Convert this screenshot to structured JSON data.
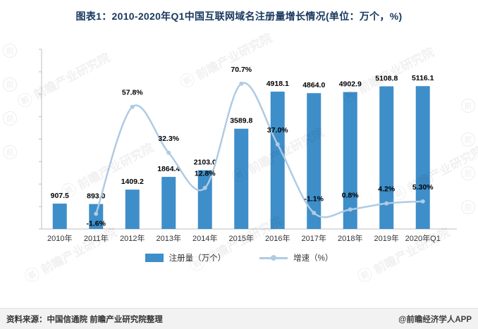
{
  "title": "图表1：2010-2020年Q1中国互联网域名注册量增长情况(单位：万个，%)",
  "chart_data": {
    "type": "bar",
    "subtype": "bar+line-combo",
    "title": "图表1：2010-2020年Q1中国互联网域名注册量增长情况(单位：万个，%)",
    "categories": [
      "2010年",
      "2011年",
      "2012年",
      "2013年",
      "2014年",
      "2015年",
      "2016年",
      "2017年",
      "2018年",
      "2019年",
      "2020年Q1"
    ],
    "series": [
      {
        "name": "注册量（万个）",
        "type": "bar",
        "values": [
          907.5,
          893.0,
          1409.2,
          1864.4,
          2103.0,
          3589.8,
          4918.1,
          4864.0,
          4902.9,
          5108.8,
          5116.1
        ],
        "labels": [
          "907.5",
          "893.0",
          "1409.2",
          "1864.4",
          "2103.0",
          "3589.8",
          "4918.1",
          "4864.0",
          "4902.9",
          "5108.8",
          "5116.1"
        ]
      },
      {
        "name": "增速（%）",
        "type": "line",
        "values": [
          null,
          -1.6,
          57.8,
          32.3,
          12.8,
          70.7,
          37.0,
          -1.1,
          0.8,
          4.2,
          5.3
        ],
        "labels": [
          "",
          "-1.6%",
          "57.8%",
          "32.3%",
          "12.8%",
          "70.7%",
          "37.0%",
          "-1.1%",
          "0.8%",
          "4.2%",
          "5.30%"
        ],
        "label_positions": [
          "none",
          "below",
          "above",
          "above",
          "above",
          "above",
          "above",
          "above",
          "above",
          "above",
          "above"
        ]
      }
    ],
    "xlabel": "",
    "ylabel": "",
    "y1lim": [
      0,
      5500
    ],
    "y2lim": [
      -10,
      80
    ],
    "grid": false,
    "legend_position": "bottom",
    "colors": {
      "bar": "#3E8EC9",
      "line": "#AFCBE3",
      "axis": "#BFBFBF",
      "label": "#000000",
      "tick_label": "#333333",
      "title": "#17375E"
    }
  },
  "legend": {
    "items": [
      {
        "label": "注册量（万个）",
        "marker": "bar"
      },
      {
        "label": "增速（%）",
        "marker": "line"
      }
    ]
  },
  "footer": {
    "source": "资料来源：中国信通院  前瞻产业研究院整理",
    "credit": "@前瞻经济学人APP"
  },
  "watermark": {
    "text": "前瞻产业研究院",
    "logo_char": "前"
  }
}
